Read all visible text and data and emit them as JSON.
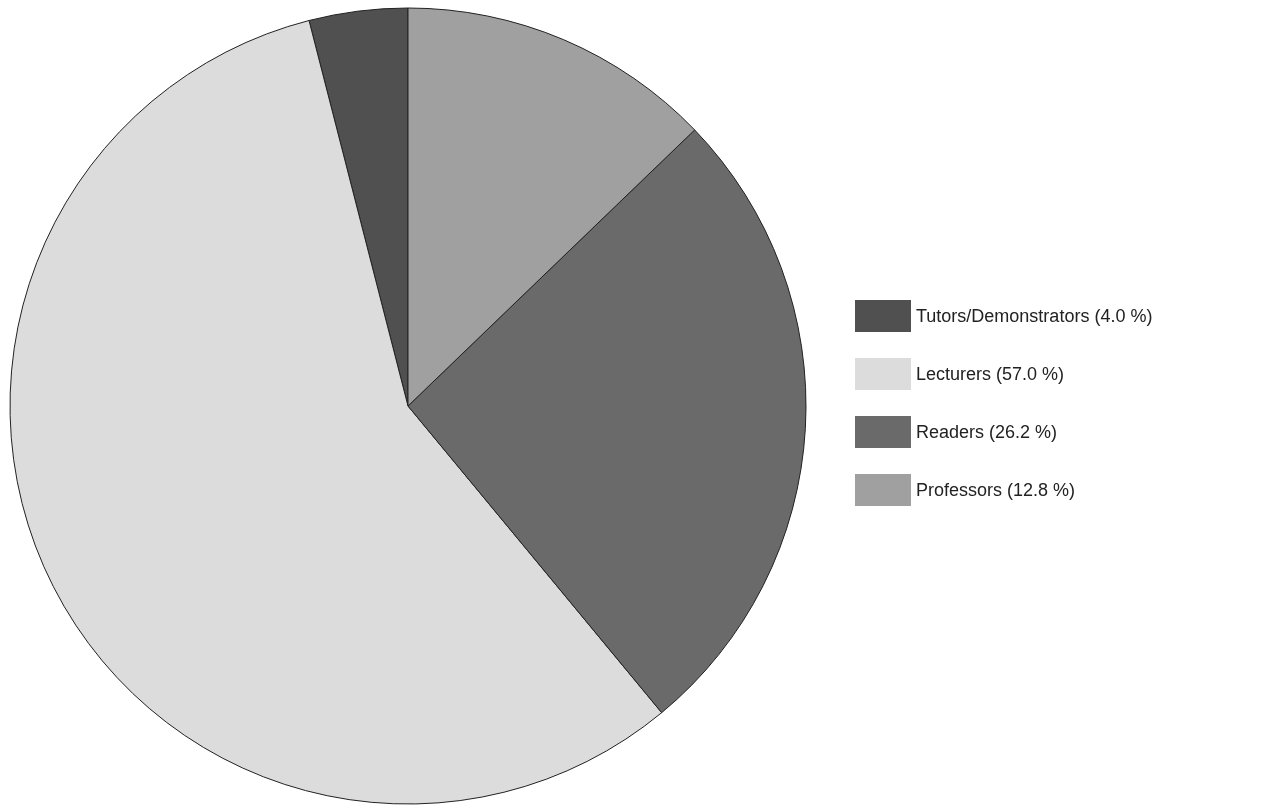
{
  "chart_data": {
    "type": "pie",
    "categories": [
      "Tutors/Demonstrators (4.0 %)",
      "Lecturers (57.0 %)",
      "Readers (26.2 %)",
      "Professors (12.8 %)"
    ],
    "values": [
      4.0,
      57.0,
      26.2,
      12.8
    ],
    "colors": [
      "#505050",
      "#dcdcdc",
      "#6a6a6a",
      "#a0a0a0"
    ],
    "legend": "right"
  }
}
